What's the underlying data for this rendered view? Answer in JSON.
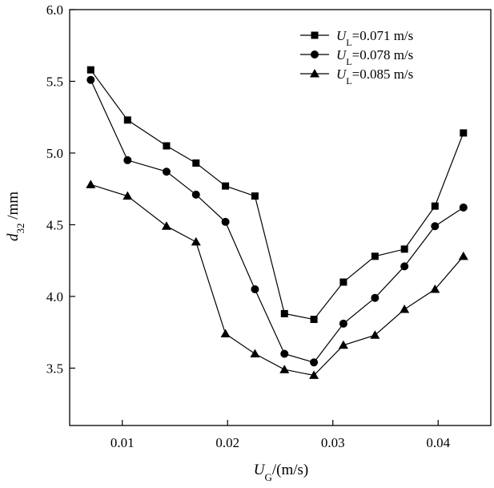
{
  "chart_data": {
    "type": "line",
    "title": "",
    "xlabel": {
      "main": "U",
      "sub": "G",
      "rest": "/(m/s)"
    },
    "ylabel": {
      "main": "d",
      "sub": "32",
      "rest": " /mm"
    },
    "xlim": [
      0.005,
      0.045
    ],
    "ylim": [
      3.1,
      6.0
    ],
    "x_ticks": [
      {
        "value": 0.01,
        "label": "0.01"
      },
      {
        "value": 0.02,
        "label": "0.02"
      },
      {
        "value": 0.03,
        "label": "0.03"
      },
      {
        "value": 0.04,
        "label": "0.04"
      }
    ],
    "y_ticks": [
      {
        "value": 3.5,
        "label": "3.5"
      },
      {
        "value": 4.0,
        "label": "4.0"
      },
      {
        "value": 4.5,
        "label": "4.5"
      },
      {
        "value": 5.0,
        "label": "5.0"
      },
      {
        "value": 5.5,
        "label": "5.5"
      },
      {
        "value": 6.0,
        "label": "6.0"
      }
    ],
    "grid": false,
    "legend_position": "top-right",
    "series": [
      {
        "name": {
          "main": "U",
          "sub": "L",
          "rest": "=0.071 m/s"
        },
        "marker": "square",
        "x": [
          0.007,
          0.0105,
          0.0142,
          0.017,
          0.0198,
          0.0226,
          0.0254,
          0.0282,
          0.031,
          0.034,
          0.0368,
          0.0397,
          0.0424
        ],
        "y": [
          5.58,
          5.23,
          5.05,
          4.93,
          4.77,
          4.7,
          3.88,
          3.84,
          4.1,
          4.28,
          4.33,
          4.63,
          5.14
        ]
      },
      {
        "name": {
          "main": "U",
          "sub": "L",
          "rest": "=0.078 m/s"
        },
        "marker": "circle",
        "x": [
          0.007,
          0.0105,
          0.0142,
          0.017,
          0.0198,
          0.0226,
          0.0254,
          0.0282,
          0.031,
          0.034,
          0.0368,
          0.0397,
          0.0424
        ],
        "y": [
          5.51,
          4.95,
          4.87,
          4.71,
          4.52,
          4.05,
          3.6,
          3.54,
          3.81,
          3.99,
          4.21,
          4.49,
          4.62
        ]
      },
      {
        "name": {
          "main": "U",
          "sub": "L",
          "rest": "=0.085 m/s"
        },
        "marker": "triangle",
        "x": [
          0.007,
          0.0105,
          0.0142,
          0.017,
          0.0198,
          0.0226,
          0.0254,
          0.0282,
          0.031,
          0.034,
          0.0368,
          0.0397,
          0.0424
        ],
        "y": [
          4.78,
          4.7,
          4.49,
          4.38,
          3.74,
          3.6,
          3.49,
          3.45,
          3.66,
          3.73,
          3.91,
          4.05,
          4.28
        ]
      }
    ]
  }
}
